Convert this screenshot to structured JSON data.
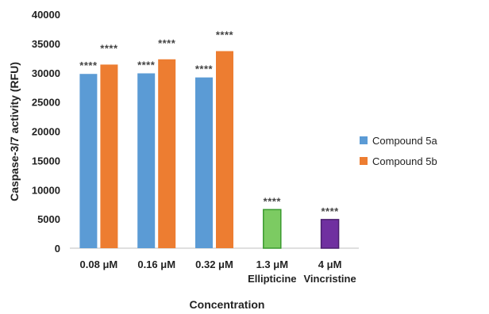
{
  "chart_data": {
    "type": "bar",
    "ylabel": "Caspase-3/7 activity (RFU)",
    "xlabel": "Concentration",
    "ylim": [
      0,
      40000
    ],
    "yticks": [
      0,
      5000,
      10000,
      15000,
      20000,
      25000,
      30000,
      35000,
      40000
    ],
    "grid": false,
    "legend_position": "right",
    "groups": [
      {
        "label": "0.08 μM",
        "sublabel": "",
        "bars": [
          {
            "series": "Compound 5a",
            "value": 29800,
            "color": "#5B9BD5",
            "annotation": "****"
          },
          {
            "series": "Compound 5b",
            "value": 31400,
            "color": "#ED7D31",
            "annotation": "****"
          }
        ]
      },
      {
        "label": "0.16 μM",
        "sublabel": "",
        "bars": [
          {
            "series": "Compound 5a",
            "value": 29900,
            "color": "#5B9BD5",
            "annotation": "****"
          },
          {
            "series": "Compound 5b",
            "value": 32300,
            "color": "#ED7D31",
            "annotation": "****"
          }
        ]
      },
      {
        "label": "0.32 μM",
        "sublabel": "",
        "bars": [
          {
            "series": "Compound 5a",
            "value": 29200,
            "color": "#5B9BD5",
            "annotation": "****"
          },
          {
            "series": "Compound 5b",
            "value": 33700,
            "color": "#ED7D31",
            "annotation": "****"
          }
        ]
      },
      {
        "label": "1.3 μM",
        "sublabel": "Ellipticine",
        "bars": [
          {
            "series": "Ellipticine",
            "value": 6600,
            "color": "#7CCB62",
            "stroke": "#3A9A2E",
            "annotation": "****"
          }
        ]
      },
      {
        "label": "4 μM",
        "sublabel": "Vincristine",
        "bars": [
          {
            "series": "Vincristine",
            "value": 4900,
            "color": "#7030A0",
            "stroke": "#4B1F6F",
            "annotation": "****"
          }
        ]
      }
    ],
    "legend": [
      {
        "name": "Compound 5a",
        "color": "#5B9BD5"
      },
      {
        "name": "Compound 5b",
        "color": "#ED7D31"
      }
    ]
  }
}
